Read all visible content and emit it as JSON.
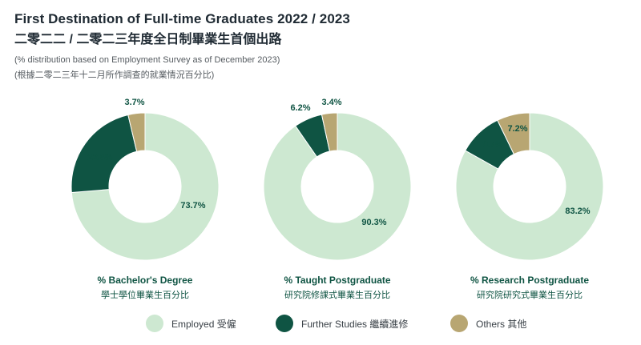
{
  "header": {
    "title_en": "First Destination of Full-time Graduates 2022 / 2023",
    "title_zh": "二零二二 / 二零二三年度全日制畢業生首個出路",
    "subtitle_en": "(% distribution based on Employment Survey as of December 2023)",
    "subtitle_zh": "(根據二零二三年十二月所作調查的就業情況百分比)"
  },
  "colors": {
    "employed": "#cde8d1",
    "further_studies": "#0f5443",
    "others": "#b8a672"
  },
  "chart_data": [
    {
      "type": "pie",
      "donut": true,
      "title": "% Bachelor's Degree",
      "title_zh": "學士學位畢業生百分比",
      "categories": [
        "Employed 受僱",
        "Further Studies 繼續進修",
        "Others 其他"
      ],
      "values": [
        73.7,
        22.6,
        3.7
      ],
      "labels": [
        "73.7%",
        "22.6%",
        "3.7%"
      ]
    },
    {
      "type": "pie",
      "donut": true,
      "title": "% Taught Postgraduate",
      "title_zh": "研究院修課式畢業生百分比",
      "categories": [
        "Employed 受僱",
        "Further Studies 繼續進修",
        "Others 其他"
      ],
      "values": [
        90.3,
        6.2,
        3.4
      ],
      "labels": [
        "90.3%",
        "6.2%",
        "3.4%"
      ]
    },
    {
      "type": "pie",
      "donut": true,
      "title": "% Research Postgraduate",
      "title_zh": "研究院研究式畢業生百分比",
      "categories": [
        "Employed 受僱",
        "Further Studies 繼續進修",
        "Others 其他"
      ],
      "values": [
        83.2,
        9.7,
        7.2
      ],
      "labels": [
        "83.2%",
        "9.7%",
        "7.2%"
      ]
    }
  ],
  "legend": {
    "position": "bottom",
    "items": [
      {
        "label": "Employed 受僱",
        "color_key": "employed"
      },
      {
        "label": "Further Studies 繼續進修",
        "color_key": "further_studies"
      },
      {
        "label": "Others 其他",
        "color_key": "others"
      }
    ]
  }
}
